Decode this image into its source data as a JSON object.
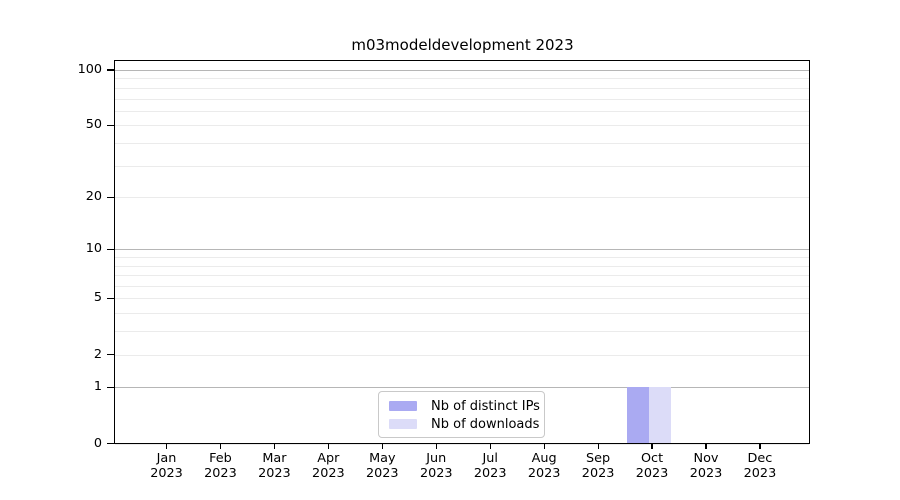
{
  "chart_data": {
    "type": "bar",
    "title": "m03modeldevelopment 2023",
    "categories": [
      "Jan 2023",
      "Feb 2023",
      "Mar 2023",
      "Apr 2023",
      "May 2023",
      "Jun 2023",
      "Jul 2023",
      "Aug 2023",
      "Sep 2023",
      "Oct 2023",
      "Nov 2023",
      "Dec 2023"
    ],
    "series": [
      {
        "name": "Nb of distinct IPs",
        "color": "#aaaaf2",
        "values": [
          0,
          0,
          0,
          0,
          0,
          0,
          0,
          0,
          0,
          1,
          0,
          0
        ]
      },
      {
        "name": "Nb of downloads",
        "color": "#dcdcf8",
        "values": [
          0,
          0,
          0,
          0,
          0,
          0,
          0,
          0,
          0,
          1,
          0,
          0
        ]
      }
    ],
    "xlabel": "",
    "ylabel": "",
    "yscale": "log1p",
    "yticks": [
      0,
      1,
      2,
      5,
      10,
      20,
      50,
      100
    ],
    "ylim": [
      0,
      110
    ],
    "grid": "both",
    "grid_major_color": "#b6b6b6",
    "grid_minor_color": "#ebebeb",
    "legend_position": "lower center",
    "text_color": "#000000",
    "background_color": "#ffffff"
  }
}
